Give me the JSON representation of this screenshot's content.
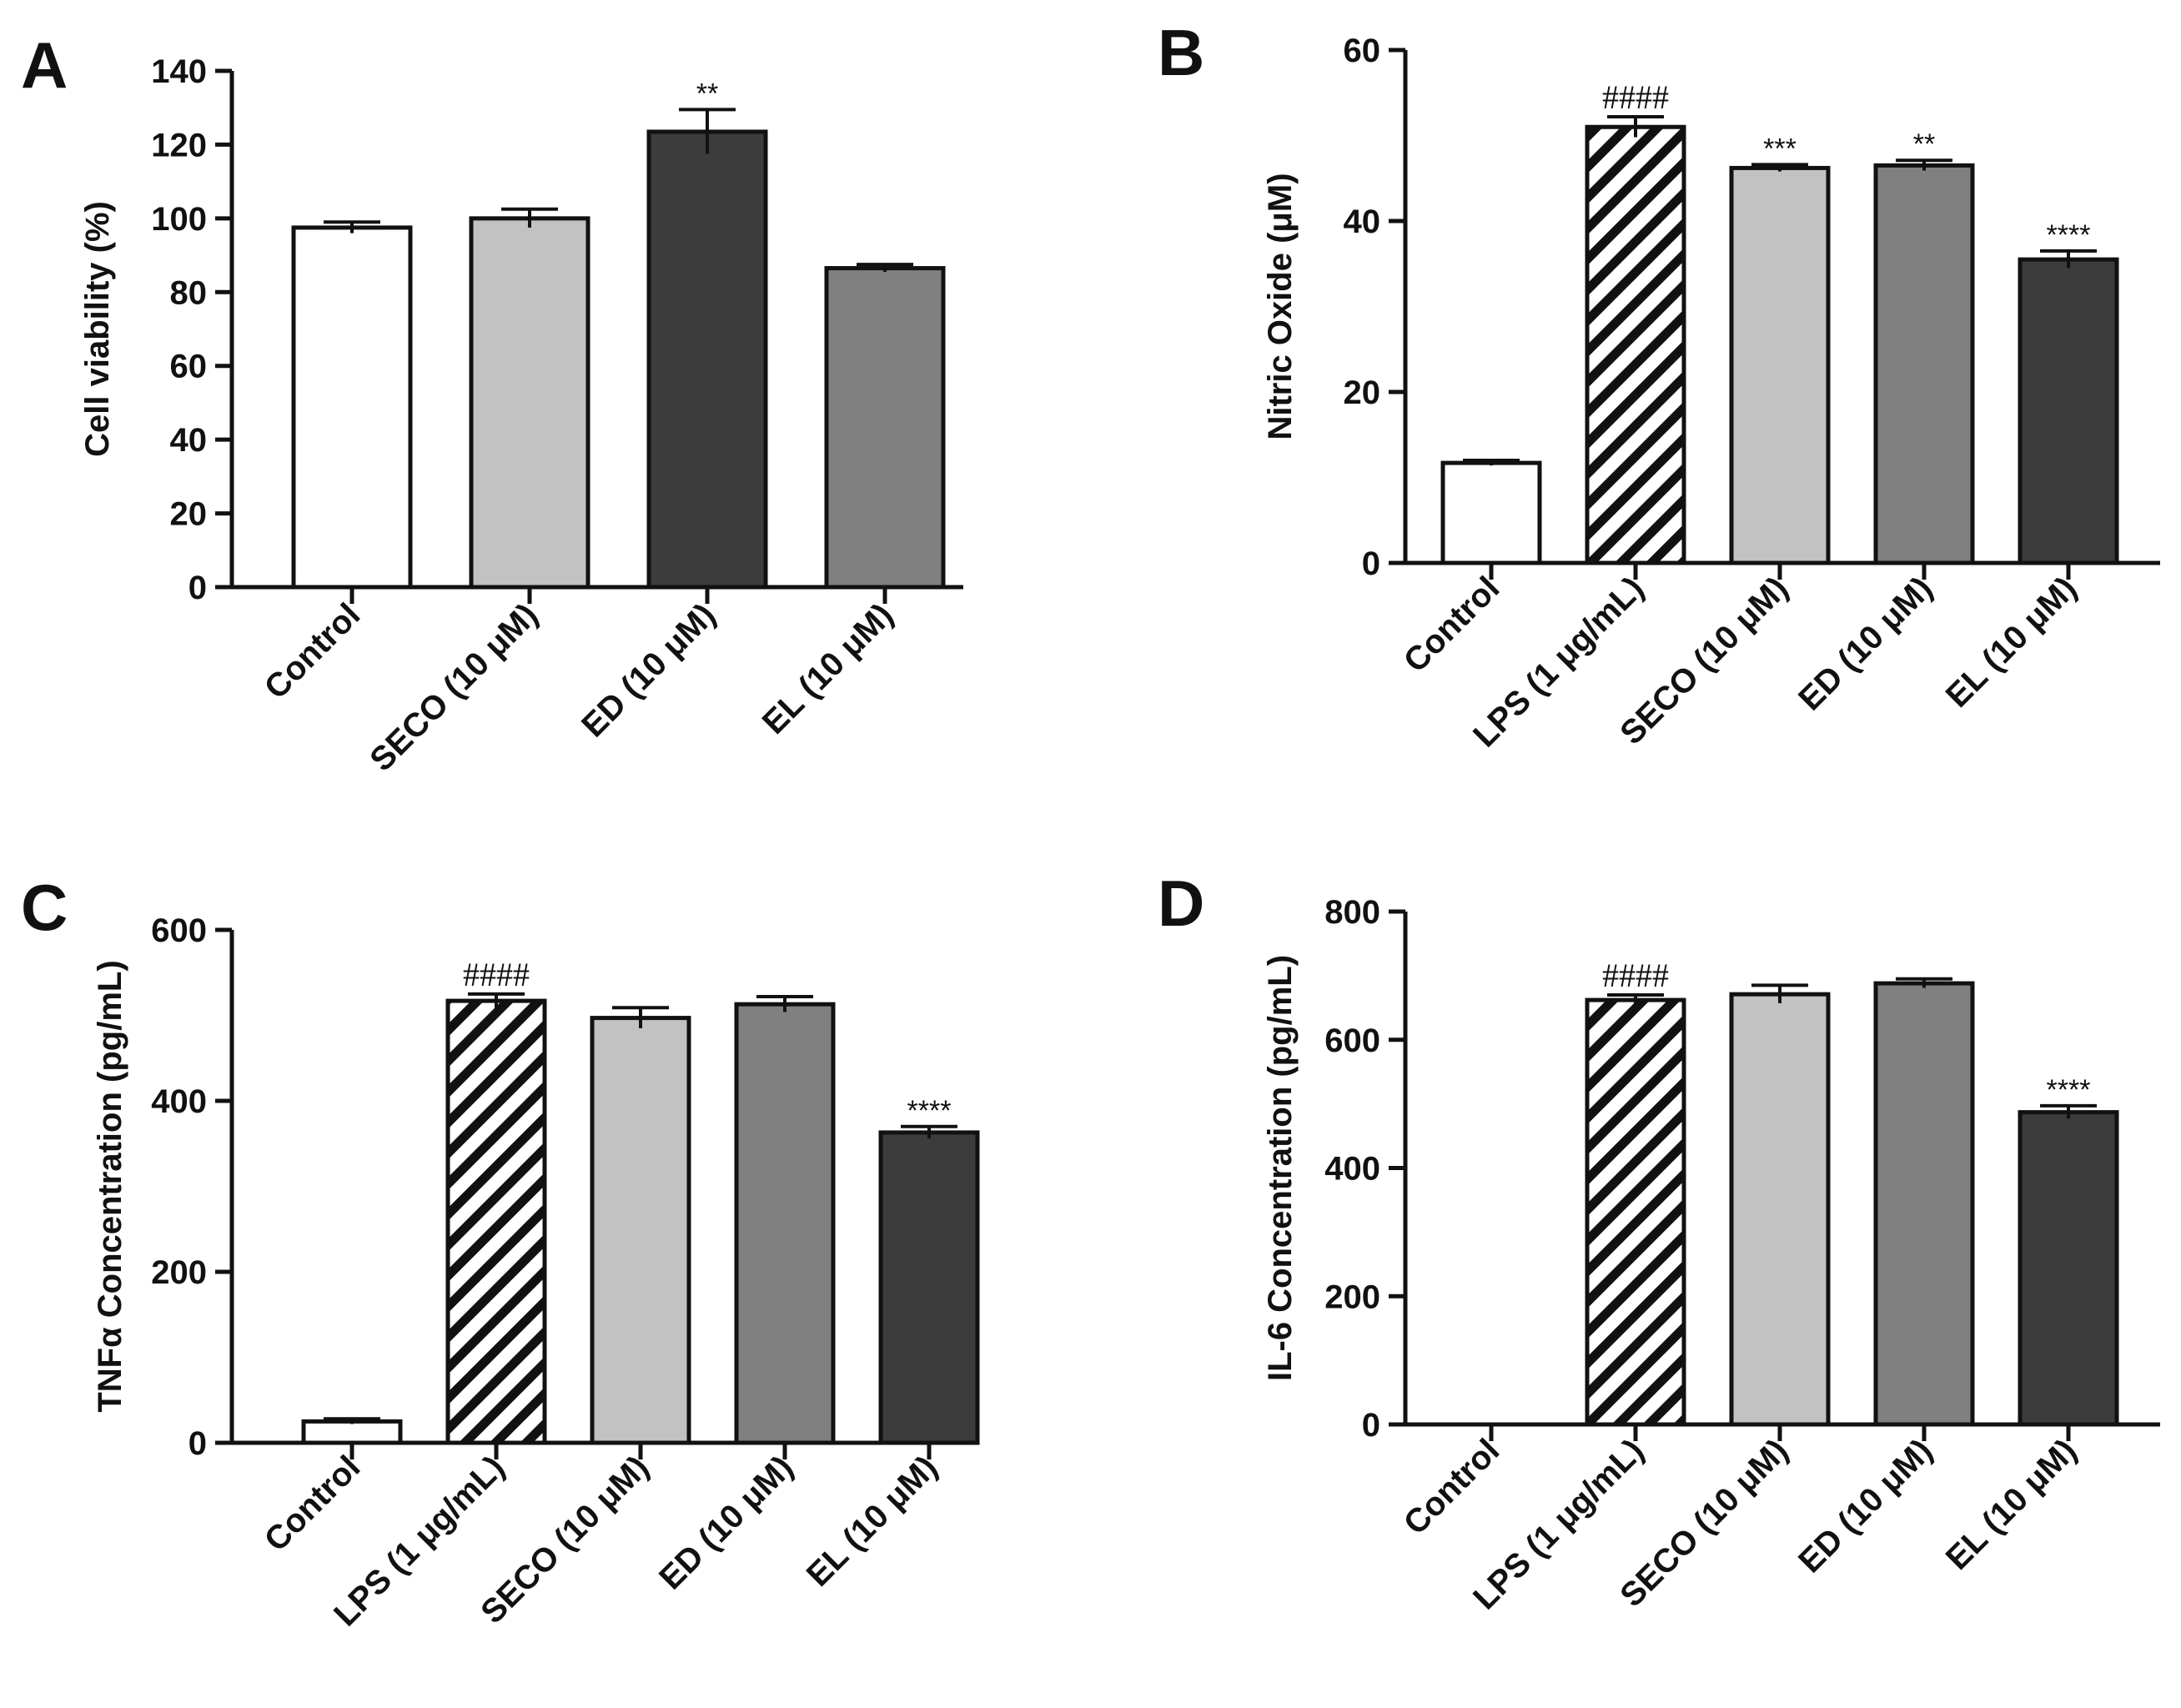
{
  "chart_data": [
    {
      "panel": "A",
      "type": "bar",
      "ylabel": "Cell viability (%)",
      "ylim": [
        0,
        140
      ],
      "yticks": [
        0,
        20,
        40,
        60,
        80,
        100,
        120,
        140
      ],
      "categories": [
        "Control",
        "SECO (10 μM)",
        "ED (10 μM)",
        "EL (10 μM)"
      ],
      "values": [
        97.5,
        100,
        123.5,
        86.5
      ],
      "errors": [
        1.5,
        2.5,
        6,
        1
      ],
      "fills": [
        "#ffffff",
        "#c2c2c2",
        "#3c3c3c",
        "#808080"
      ],
      "hatch": [
        false,
        false,
        false,
        false
      ],
      "significance": [
        "",
        "",
        "**",
        ""
      ]
    },
    {
      "panel": "B",
      "type": "bar",
      "ylabel": "Nitric Oxide (μM)",
      "ylim": [
        0,
        60
      ],
      "yticks": [
        0,
        20,
        40,
        60
      ],
      "categories": [
        "Control",
        "LPS (1 μg/mL)",
        "SECO (10 μM)",
        "ED (10 μM)",
        "EL (10 μM)"
      ],
      "values": [
        11.7,
        51,
        46.2,
        46.5,
        35.5
      ],
      "errors": [
        0.3,
        1.2,
        0.4,
        0.6,
        1
      ],
      "fills": [
        "#ffffff",
        "#ffffff",
        "#c2c2c2",
        "#808080",
        "#3c3c3c"
      ],
      "hatch": [
        false,
        true,
        false,
        false,
        false
      ],
      "significance": [
        "",
        "####",
        "***",
        "**",
        "****"
      ]
    },
    {
      "panel": "C",
      "type": "bar",
      "ylabel": "TNFα Concentration (pg/mL)",
      "ylim": [
        0,
        600
      ],
      "yticks": [
        0,
        200,
        400,
        600
      ],
      "categories": [
        "Control",
        "LPS (1 μg/mL)",
        "SECO (10 μM)",
        "ED (10 μM)",
        "EL (10 μM)"
      ],
      "values": [
        25,
        517,
        497,
        513,
        363
      ],
      "errors": [
        3,
        8,
        12,
        9,
        7
      ],
      "fills": [
        "#ffffff",
        "#ffffff",
        "#c2c2c2",
        "#808080",
        "#3c3c3c"
      ],
      "hatch": [
        false,
        true,
        false,
        false,
        false
      ],
      "significance": [
        "",
        "####",
        "",
        "",
        "****"
      ]
    },
    {
      "panel": "D",
      "type": "bar",
      "ylabel": "IL-6 Concentration (pg/mL)",
      "ylim": [
        0,
        800
      ],
      "yticks": [
        0,
        200,
        400,
        600,
        800
      ],
      "categories": [
        "Control",
        "LPS (1 μg/mL)",
        "SECO (10 μM)",
        "ED (10 μM)",
        "EL (10 μM)"
      ],
      "values": [
        0,
        662,
        671,
        688,
        487
      ],
      "errors": [
        0,
        8,
        14,
        7,
        10
      ],
      "fills": [
        "#ffffff",
        "#ffffff",
        "#c2c2c2",
        "#808080",
        "#3c3c3c"
      ],
      "hatch": [
        false,
        true,
        false,
        false,
        false
      ],
      "significance": [
        "",
        "####",
        "",
        "",
        "****"
      ]
    }
  ]
}
